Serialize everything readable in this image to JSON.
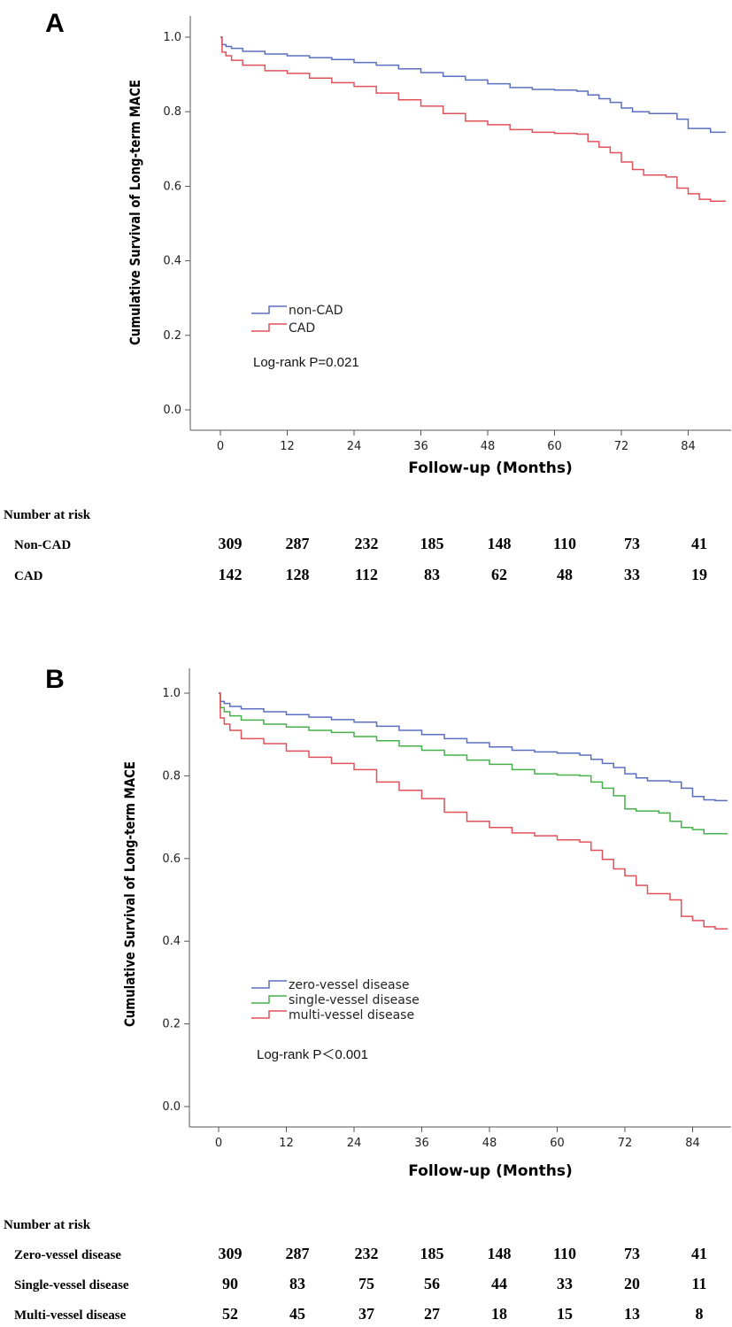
{
  "panels": [
    {
      "label": "A",
      "annotation": "Log-rank P=0.021",
      "risk_title": "Number at risk",
      "risk_rows": [
        {
          "label": "Non-CAD",
          "values": [
            "309",
            "287",
            "232",
            "185",
            "148",
            "110",
            "73",
            "41"
          ]
        },
        {
          "label": "CAD",
          "values": [
            "142",
            "128",
            "112",
            "83",
            "62",
            "48",
            "33",
            "19"
          ]
        }
      ]
    },
    {
      "label": "B",
      "annotation": "Log-rank P＜0.001",
      "risk_title": "Number at risk",
      "risk_rows": [
        {
          "label": "Zero-vessel disease",
          "values": [
            "309",
            "287",
            "232",
            "185",
            "148",
            "110",
            "73",
            "41"
          ]
        },
        {
          "label": "Single-vessel disease",
          "values": [
            "90",
            "83",
            "75",
            "56",
            "44",
            "33",
            "20",
            "11"
          ]
        },
        {
          "label": "Multi-vessel disease",
          "values": [
            "52",
            "45",
            "37",
            "27",
            "18",
            "15",
            "13",
            "8"
          ]
        }
      ]
    }
  ],
  "chart_data": [
    {
      "type": "line",
      "step": true,
      "xlabel": "Follow-up (Months)",
      "ylabel": "Cumulative Survival of Long-term MACE",
      "xlim": [
        0,
        88
      ],
      "ylim": [
        0,
        1.0
      ],
      "xticks": [
        "0",
        "12",
        "24",
        "36",
        "48",
        "60",
        "72",
        "84"
      ],
      "yticks": [
        "0.0",
        "0.2",
        "0.4",
        "0.6",
        "0.8",
        "1.0"
      ],
      "legend_position": "lower-left",
      "series": [
        {
          "name": "non-CAD",
          "color": "#5b6fc0",
          "points": [
            [
              0,
              1.0
            ],
            [
              0.3,
              0.98
            ],
            [
              1,
              0.975
            ],
            [
              2,
              0.97
            ],
            [
              4,
              0.962
            ],
            [
              8,
              0.955
            ],
            [
              12,
              0.95
            ],
            [
              16,
              0.945
            ],
            [
              20,
              0.94
            ],
            [
              24,
              0.932
            ],
            [
              28,
              0.925
            ],
            [
              32,
              0.915
            ],
            [
              36,
              0.905
            ],
            [
              40,
              0.895
            ],
            [
              44,
              0.885
            ],
            [
              48,
              0.875
            ],
            [
              52,
              0.865
            ],
            [
              56,
              0.86
            ],
            [
              60,
              0.858
            ],
            [
              64,
              0.855
            ],
            [
              66,
              0.845
            ],
            [
              68,
              0.835
            ],
            [
              70,
              0.825
            ],
            [
              72,
              0.81
            ],
            [
              74,
              0.8
            ],
            [
              77,
              0.795
            ],
            [
              80,
              0.795
            ],
            [
              82,
              0.78
            ],
            [
              84,
              0.755
            ],
            [
              88,
              0.745
            ]
          ]
        },
        {
          "name": "CAD",
          "color": "#e0515a",
          "points": [
            [
              0,
              1.0
            ],
            [
              0.3,
              0.96
            ],
            [
              1,
              0.95
            ],
            [
              2,
              0.938
            ],
            [
              4,
              0.925
            ],
            [
              8,
              0.91
            ],
            [
              12,
              0.903
            ],
            [
              16,
              0.89
            ],
            [
              20,
              0.878
            ],
            [
              24,
              0.868
            ],
            [
              28,
              0.85
            ],
            [
              32,
              0.832
            ],
            [
              36,
              0.815
            ],
            [
              40,
              0.795
            ],
            [
              44,
              0.775
            ],
            [
              48,
              0.765
            ],
            [
              52,
              0.752
            ],
            [
              56,
              0.745
            ],
            [
              60,
              0.742
            ],
            [
              64,
              0.74
            ],
            [
              66,
              0.72
            ],
            [
              68,
              0.705
            ],
            [
              70,
              0.69
            ],
            [
              72,
              0.665
            ],
            [
              74,
              0.645
            ],
            [
              76,
              0.63
            ],
            [
              80,
              0.625
            ],
            [
              82,
              0.595
            ],
            [
              84,
              0.58
            ],
            [
              86,
              0.565
            ],
            [
              88,
              0.56
            ]
          ]
        }
      ]
    },
    {
      "type": "line",
      "step": true,
      "xlabel": "Follow-up (Months)",
      "ylabel": "Cumulative Survival of Long-term MACE",
      "xlim": [
        0,
        88
      ],
      "ylim": [
        0,
        1.0
      ],
      "xticks": [
        "0",
        "12",
        "24",
        "36",
        "48",
        "60",
        "72",
        "84"
      ],
      "yticks": [
        "0.0",
        "0.2",
        "0.4",
        "0.6",
        "0.8",
        "1.0"
      ],
      "legend_position": "lower-left",
      "series": [
        {
          "name": "zero-vessel disease",
          "color": "#5b6fc0",
          "points": [
            [
              0,
              1.0
            ],
            [
              0.3,
              0.98
            ],
            [
              1,
              0.975
            ],
            [
              2,
              0.968
            ],
            [
              4,
              0.962
            ],
            [
              8,
              0.955
            ],
            [
              12,
              0.948
            ],
            [
              16,
              0.942
            ],
            [
              20,
              0.936
            ],
            [
              24,
              0.93
            ],
            [
              28,
              0.92
            ],
            [
              32,
              0.91
            ],
            [
              36,
              0.9
            ],
            [
              40,
              0.89
            ],
            [
              44,
              0.88
            ],
            [
              48,
              0.87
            ],
            [
              52,
              0.862
            ],
            [
              56,
              0.858
            ],
            [
              60,
              0.855
            ],
            [
              64,
              0.85
            ],
            [
              66,
              0.84
            ],
            [
              68,
              0.83
            ],
            [
              70,
              0.82
            ],
            [
              72,
              0.805
            ],
            [
              74,
              0.795
            ],
            [
              76,
              0.788
            ],
            [
              80,
              0.785
            ],
            [
              82,
              0.77
            ],
            [
              84,
              0.75
            ],
            [
              86,
              0.742
            ],
            [
              88,
              0.74
            ]
          ]
        },
        {
          "name": "single-vessel disease",
          "color": "#46b04a",
          "points": [
            [
              0,
              1.0
            ],
            [
              0.3,
              0.965
            ],
            [
              1,
              0.955
            ],
            [
              2,
              0.945
            ],
            [
              4,
              0.935
            ],
            [
              8,
              0.925
            ],
            [
              12,
              0.918
            ],
            [
              16,
              0.91
            ],
            [
              20,
              0.905
            ],
            [
              24,
              0.895
            ],
            [
              28,
              0.885
            ],
            [
              32,
              0.872
            ],
            [
              36,
              0.862
            ],
            [
              40,
              0.85
            ],
            [
              44,
              0.838
            ],
            [
              48,
              0.828
            ],
            [
              52,
              0.815
            ],
            [
              56,
              0.805
            ],
            [
              60,
              0.802
            ],
            [
              64,
              0.8
            ],
            [
              66,
              0.785
            ],
            [
              68,
              0.77
            ],
            [
              70,
              0.752
            ],
            [
              72,
              0.72
            ],
            [
              74,
              0.715
            ],
            [
              76,
              0.715
            ],
            [
              78,
              0.71
            ],
            [
              80,
              0.69
            ],
            [
              82,
              0.675
            ],
            [
              84,
              0.67
            ],
            [
              86,
              0.66
            ],
            [
              88,
              0.66
            ]
          ]
        },
        {
          "name": "multi-vessel disease",
          "color": "#e0515a",
          "points": [
            [
              0,
              1.0
            ],
            [
              0.3,
              0.94
            ],
            [
              1,
              0.925
            ],
            [
              2,
              0.91
            ],
            [
              4,
              0.89
            ],
            [
              8,
              0.878
            ],
            [
              12,
              0.86
            ],
            [
              16,
              0.845
            ],
            [
              20,
              0.83
            ],
            [
              24,
              0.815
            ],
            [
              28,
              0.785
            ],
            [
              32,
              0.765
            ],
            [
              36,
              0.745
            ],
            [
              40,
              0.712
            ],
            [
              44,
              0.69
            ],
            [
              48,
              0.675
            ],
            [
              52,
              0.662
            ],
            [
              56,
              0.655
            ],
            [
              60,
              0.645
            ],
            [
              64,
              0.64
            ],
            [
              66,
              0.62
            ],
            [
              68,
              0.598
            ],
            [
              70,
              0.575
            ],
            [
              72,
              0.558
            ],
            [
              74,
              0.535
            ],
            [
              76,
              0.515
            ],
            [
              80,
              0.5
            ],
            [
              82,
              0.46
            ],
            [
              84,
              0.45
            ],
            [
              86,
              0.435
            ],
            [
              88,
              0.43
            ]
          ]
        }
      ]
    }
  ]
}
